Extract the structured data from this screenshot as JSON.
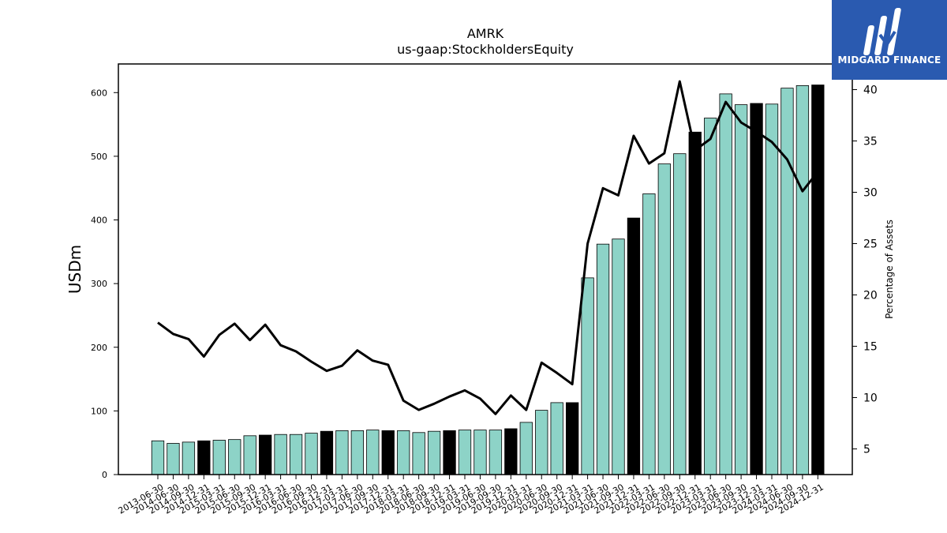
{
  "chart_data": {
    "type": "bar",
    "title": "AMRK",
    "subtitle": "us-gaap:StockholdersEquity",
    "ylabel": "USDm",
    "y2label": "Percentage of Assets",
    "ylim": [
      0,
      645
    ],
    "y2lim": [
      2.5,
      42.5
    ],
    "yticks": [
      0,
      100,
      200,
      300,
      400,
      500,
      600
    ],
    "y2ticks": [
      5,
      10,
      15,
      20,
      25,
      30,
      35,
      40
    ],
    "categories": [
      "2013-06-30",
      "2014-06-30",
      "2014-09-30",
      "2014-12-31",
      "2015-03-31",
      "2015-06-30",
      "2015-09-30",
      "2015-12-31",
      "2016-03-31",
      "2016-06-30",
      "2016-09-30",
      "2016-12-31",
      "2017-03-31",
      "2017-06-30",
      "2017-09-30",
      "2017-12-31",
      "2018-03-31",
      "2018-06-30",
      "2018-09-30",
      "2018-12-31",
      "2019-03-31",
      "2019-06-30",
      "2019-09-30",
      "2019-12-31",
      "2020-03-31",
      "2020-06-30",
      "2020-09-30",
      "2020-12-31",
      "2021-03-31",
      "2021-06-30",
      "2021-09-30",
      "2021-12-31",
      "2022-03-31",
      "2022-06-30",
      "2022-09-30",
      "2022-12-31",
      "2023-03-31",
      "2023-06-30",
      "2023-09-30",
      "2023-12-31",
      "2024-03-31",
      "2024-06-30",
      "2024-09-30",
      "2024-12-31"
    ],
    "series": [
      {
        "type": "bar",
        "values": [
          53,
          49,
          51,
          53,
          54,
          55,
          61,
          62,
          63,
          63,
          65,
          68,
          69,
          69,
          70,
          69,
          69,
          66,
          68,
          69,
          70,
          70,
          70,
          72,
          82,
          101,
          113,
          113,
          309,
          362,
          370,
          403,
          441,
          488,
          504,
          538,
          560,
          598,
          581,
          583,
          582,
          607,
          611,
          612
        ],
        "highlight": [
          false,
          false,
          false,
          true,
          false,
          false,
          false,
          true,
          false,
          false,
          false,
          true,
          false,
          false,
          false,
          true,
          false,
          false,
          false,
          true,
          false,
          false,
          false,
          true,
          false,
          false,
          false,
          true,
          false,
          false,
          false,
          true,
          false,
          false,
          false,
          true,
          false,
          false,
          false,
          true,
          false,
          false,
          false,
          true
        ],
        "color": "#8dd3c7",
        "highlight_color": "#000000"
      },
      {
        "type": "line",
        "axis": "right",
        "values": [
          17.3,
          16.2,
          15.7,
          14.0,
          16.1,
          17.2,
          15.6,
          17.1,
          15.1,
          14.5,
          13.5,
          12.6,
          13.1,
          14.6,
          13.6,
          13.2,
          9.7,
          8.8,
          9.4,
          10.1,
          10.7,
          9.9,
          8.4,
          10.2,
          8.8,
          13.4,
          12.4,
          11.3,
          25.0,
          30.4,
          29.7,
          35.5,
          32.8,
          33.8,
          40.8,
          34.1,
          35.2,
          38.8,
          36.8,
          35.9,
          34.9,
          33.2,
          30.1,
          32.0
        ],
        "color": "#000000"
      }
    ]
  },
  "logo": {
    "text": "MIDGARD FINANCE",
    "bg_color": "#2a5ab0",
    "icon": "midgard-logo-icon"
  }
}
